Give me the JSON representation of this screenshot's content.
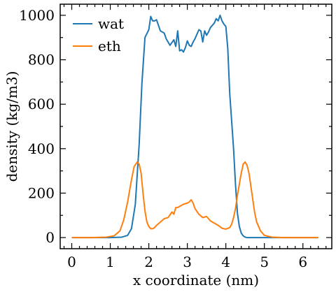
{
  "chart_data": {
    "type": "line",
    "xlabel": "x coordinate (nm)",
    "ylabel": "density (kg/m3)",
    "xlim": [
      -0.3,
      6.75
    ],
    "ylim": [
      -50,
      1050
    ],
    "xticks": [
      0,
      1,
      2,
      3,
      4,
      5,
      6
    ],
    "xtick_labels": [
      "0",
      "1",
      "2",
      "3",
      "4",
      "5",
      "6"
    ],
    "yticks": [
      0,
      200,
      400,
      600,
      800,
      1000
    ],
    "ytick_labels": [
      "0",
      "200",
      "400",
      "600",
      "800",
      "1000"
    ],
    "legend_position": "top-left",
    "grid": false,
    "series": [
      {
        "name": "wat",
        "color": "#1f77b4",
        "x": [
          0,
          0.5,
          1.0,
          1.3,
          1.45,
          1.55,
          1.65,
          1.75,
          1.82,
          1.9,
          2.0,
          2.05,
          2.1,
          2.15,
          2.2,
          2.3,
          2.4,
          2.45,
          2.55,
          2.65,
          2.7,
          2.75,
          2.8,
          2.85,
          2.9,
          2.95,
          3.0,
          3.05,
          3.1,
          3.15,
          3.2,
          3.3,
          3.35,
          3.4,
          3.45,
          3.5,
          3.55,
          3.6,
          3.7,
          3.75,
          3.8,
          3.85,
          3.9,
          3.95,
          4.0,
          4.05,
          4.1,
          4.2,
          4.25,
          4.3,
          4.35,
          4.4,
          4.45,
          4.5,
          4.55,
          4.6,
          4.7,
          4.8,
          5.0,
          5.5,
          6.0,
          6.4
        ],
        "y": [
          0,
          0,
          0,
          2,
          10,
          40,
          150,
          420,
          690,
          900,
          935,
          995,
          975,
          975,
          980,
          930,
          920,
          895,
          865,
          890,
          860,
          930,
          840,
          845,
          835,
          855,
          885,
          865,
          860,
          880,
          895,
          935,
          930,
          880,
          930,
          910,
          925,
          945,
          965,
          985,
          975,
          1000,
          975,
          960,
          950,
          850,
          650,
          400,
          240,
          110,
          50,
          20,
          8,
          2,
          0,
          0,
          0,
          0,
          0,
          0,
          0,
          0
        ]
      },
      {
        "name": "eth",
        "color": "#ff7f0e",
        "x": [
          0,
          0.5,
          0.9,
          1.1,
          1.25,
          1.35,
          1.45,
          1.55,
          1.62,
          1.7,
          1.75,
          1.8,
          1.85,
          1.9,
          1.95,
          2.0,
          2.05,
          2.1,
          2.15,
          2.2,
          2.3,
          2.4,
          2.5,
          2.6,
          2.65,
          2.7,
          2.75,
          2.8,
          2.9,
          3.0,
          3.05,
          3.1,
          3.15,
          3.2,
          3.3,
          3.4,
          3.5,
          3.6,
          3.7,
          3.8,
          3.9,
          4.0,
          4.1,
          4.15,
          4.2,
          4.25,
          4.3,
          4.35,
          4.4,
          4.45,
          4.5,
          4.55,
          4.6,
          4.65,
          4.7,
          4.75,
          4.8,
          4.9,
          5.0,
          5.2,
          5.5,
          6.0,
          6.4
        ],
        "y": [
          0,
          0,
          2,
          8,
          30,
          80,
          160,
          260,
          320,
          340,
          330,
          290,
          200,
          120,
          70,
          50,
          40,
          40,
          45,
          55,
          70,
          85,
          90,
          115,
          105,
          135,
          135,
          140,
          150,
          155,
          160,
          170,
          155,
          130,
          105,
          90,
          95,
          75,
          65,
          55,
          42,
          38,
          45,
          60,
          90,
          130,
          190,
          240,
          290,
          330,
          340,
          325,
          290,
          230,
          170,
          110,
          70,
          30,
          10,
          2,
          0,
          0,
          0
        ]
      }
    ]
  }
}
